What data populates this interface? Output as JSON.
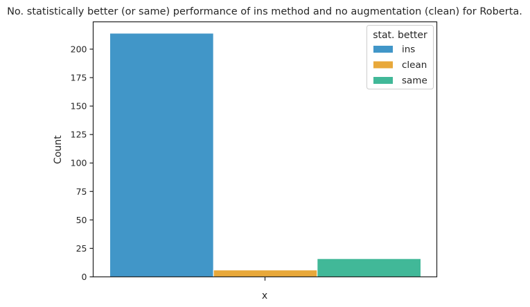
{
  "chart_data": {
    "type": "bar",
    "title": "No. statistically better (or same) performance of ins method and no augmentation (clean) for Roberta.",
    "xlabel": "x",
    "ylabel": "Count",
    "categories": [],
    "ylim": [
      0,
      224
    ],
    "yticks": [
      0,
      25,
      50,
      75,
      100,
      125,
      150,
      175,
      200
    ],
    "grid": false,
    "legend": {
      "title": "stat. better",
      "placement": "top-right"
    },
    "series": [
      {
        "name": "ins",
        "value": 214,
        "color": "#4196c8"
      },
      {
        "name": "clean",
        "value": 6,
        "color": "#e8a83a"
      },
      {
        "name": "same",
        "value": 16,
        "color": "#41b898"
      }
    ]
  }
}
